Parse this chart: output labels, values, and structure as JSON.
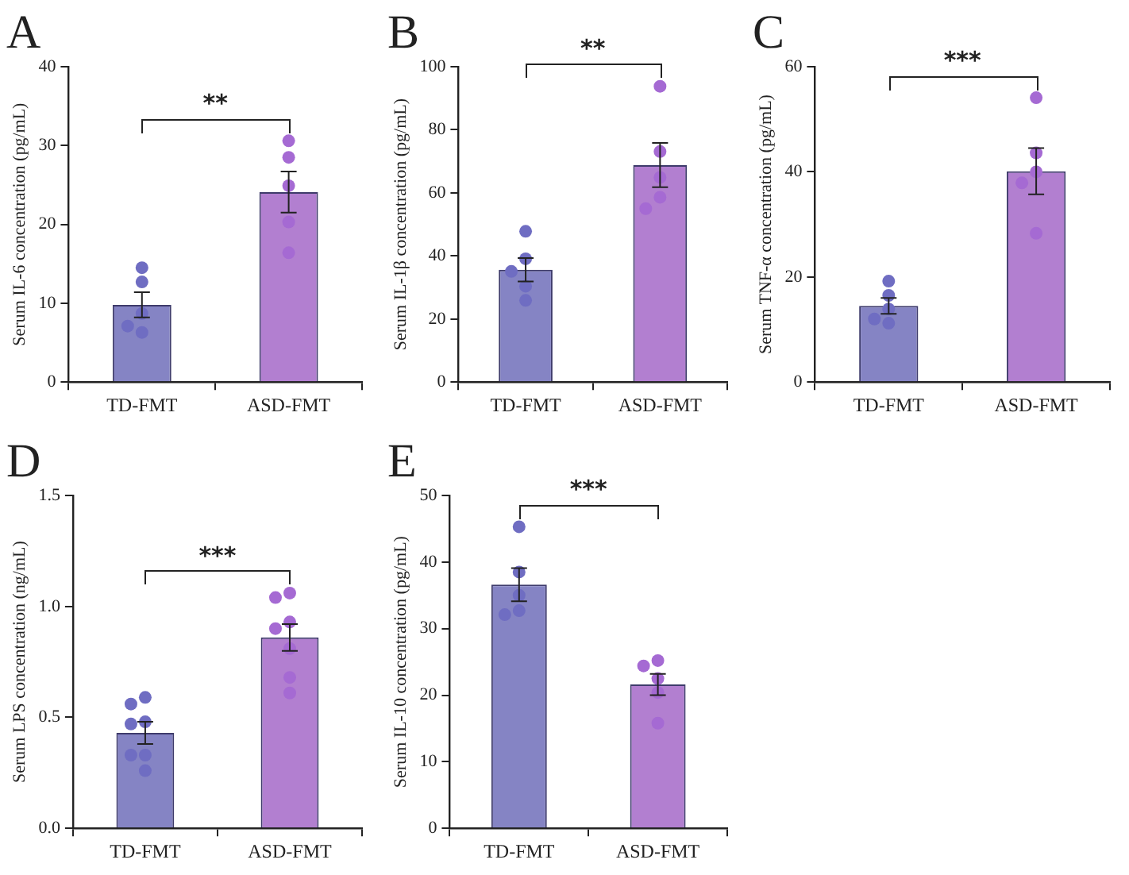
{
  "chart_data": [
    {
      "type": "bar",
      "title": "A",
      "ylabel": "Serum IL-6 concentration (pg/mL)",
      "categories": [
        "TD-FMT",
        "ASD-FMT"
      ],
      "ylim": [
        0,
        40
      ],
      "yticks": [
        0,
        10,
        20,
        30,
        40
      ],
      "grid": false,
      "legend": false,
      "marker": "circle",
      "annotations": [
        "**"
      ],
      "series": [
        {
          "colors": [
            "#8584c4",
            "#b27fd0"
          ],
          "values": [
            9.8,
            24.1
          ],
          "errors": [
            1.6,
            2.6
          ]
        },
        {
          "type": "scatter",
          "x": [
            "TD-FMT",
            "TD-FMT",
            "TD-FMT",
            "TD-FMT",
            "TD-FMT",
            "ASD-FMT",
            "ASD-FMT",
            "ASD-FMT",
            "ASD-FMT",
            "ASD-FMT"
          ],
          "values": [
            14.5,
            12.7,
            8.7,
            6.3,
            7.1,
            30.6,
            28.5,
            24.9,
            20.3,
            16.4
          ],
          "colors": [
            "#6f6dc2",
            "#6f6dc2",
            "#6f6dc2",
            "#6f6dc2",
            "#6f6dc2",
            "#a56ad3",
            "#a56ad3",
            "#a56ad3",
            "#a56ad3",
            "#a56ad3"
          ]
        }
      ]
    },
    {
      "type": "bar",
      "title": "B",
      "ylabel": "Serum IL-1β concentration (pg/mL)",
      "categories": [
        "TD-FMT",
        "ASD-FMT"
      ],
      "ylim": [
        0,
        100
      ],
      "yticks": [
        0,
        20,
        40,
        60,
        80,
        100
      ],
      "grid": false,
      "legend": false,
      "marker": "circle",
      "annotations": [
        "**"
      ],
      "series": [
        {
          "colors": [
            "#8584c4",
            "#b27fd0"
          ],
          "values": [
            35.6,
            68.8
          ],
          "errors": [
            3.7,
            7
          ]
        },
        {
          "type": "scatter",
          "x": [
            "TD-FMT",
            "TD-FMT",
            "TD-FMT",
            "TD-FMT",
            "TD-FMT",
            "ASD-FMT",
            "ASD-FMT",
            "ASD-FMT",
            "ASD-FMT",
            "ASD-FMT"
          ],
          "values": [
            47.8,
            39.1,
            35.1,
            30.4,
            25.9,
            93.8,
            73.1,
            64.9,
            58.6,
            55
          ],
          "colors": [
            "#6f6dc2",
            "#6f6dc2",
            "#6f6dc2",
            "#6f6dc2",
            "#6f6dc2",
            "#a56ad3",
            "#a56ad3",
            "#a56ad3",
            "#a56ad3",
            "#a56ad3"
          ]
        }
      ]
    },
    {
      "type": "bar",
      "title": "C",
      "ylabel": "Serum TNF-α concentration (pg/mL)",
      "categories": [
        "TD-FMT",
        "ASD-FMT"
      ],
      "ylim": [
        0,
        60
      ],
      "yticks": [
        0,
        20,
        40,
        60
      ],
      "grid": false,
      "legend": false,
      "marker": "circle",
      "annotations": [
        "***"
      ],
      "series": [
        {
          "colors": [
            "#8584c4",
            "#b27fd0"
          ],
          "values": [
            14.5,
            40.1
          ],
          "errors": [
            1.5,
            4.4
          ]
        },
        {
          "type": "scatter",
          "x": [
            "TD-FMT",
            "TD-FMT",
            "TD-FMT",
            "TD-FMT",
            "TD-FMT",
            "ASD-FMT",
            "ASD-FMT",
            "ASD-FMT",
            "ASD-FMT",
            "ASD-FMT"
          ],
          "values": [
            19.2,
            16.5,
            13.9,
            12,
            11.2,
            54.1,
            43.6,
            40,
            37.9,
            28.3
          ],
          "colors": [
            "#6f6dc2",
            "#6f6dc2",
            "#6f6dc2",
            "#6f6dc2",
            "#6f6dc2",
            "#a56ad3",
            "#a56ad3",
            "#a56ad3",
            "#a56ad3",
            "#a56ad3"
          ]
        }
      ]
    },
    {
      "type": "bar",
      "title": "D",
      "ylabel": "Serum LPS concentration (ng/mL)",
      "categories": [
        "TD-FMT",
        "ASD-FMT"
      ],
      "ylim": [
        0,
        1.5
      ],
      "yticks": [
        {
          "value": 0,
          "label": "0.0"
        },
        0.5,
        {
          "value": 1,
          "label": "1.0"
        },
        1.5
      ],
      "grid": false,
      "legend": false,
      "marker": "circle",
      "annotations": [
        "***"
      ],
      "series": [
        {
          "colors": [
            "#8584c4",
            "#b27fd0"
          ],
          "values": [
            0.43,
            0.86
          ],
          "errors": [
            0.05,
            0.06
          ]
        },
        {
          "type": "scatter",
          "x": [
            "TD-FMT",
            "TD-FMT",
            "TD-FMT",
            "TD-FMT",
            "TD-FMT",
            "TD-FMT",
            "TD-FMT",
            "ASD-FMT",
            "ASD-FMT",
            "ASD-FMT",
            "ASD-FMT",
            "ASD-FMT",
            "ASD-FMT",
            "ASD-FMT"
          ],
          "values": [
            0.59,
            0.56,
            0.48,
            0.47,
            0.33,
            0.33,
            0.26,
            1.06,
            1.04,
            0.93,
            0.9,
            0.81,
            0.68,
            0.61
          ],
          "colors": [
            "#6f6dc2",
            "#6f6dc2",
            "#6f6dc2",
            "#6f6dc2",
            "#6f6dc2",
            "#6f6dc2",
            "#6f6dc2",
            "#a56ad3",
            "#a56ad3",
            "#a56ad3",
            "#a56ad3",
            "#a56ad3",
            "#a56ad3",
            "#a56ad3"
          ]
        }
      ]
    },
    {
      "type": "bar",
      "title": "E",
      "ylabel": "Serum IL-10 concentration (pg/mL)",
      "categories": [
        "TD-FMT",
        "ASD-FMT"
      ],
      "ylim": [
        0,
        50
      ],
      "yticks": [
        0,
        10,
        20,
        30,
        40,
        50
      ],
      "grid": false,
      "legend": false,
      "marker": "circle",
      "annotations": [
        "***"
      ],
      "series": [
        {
          "colors": [
            "#8584c4",
            "#b27fd0"
          ],
          "values": [
            36.6,
            21.6
          ],
          "errors": [
            2.5,
            1.6
          ]
        },
        {
          "type": "scatter",
          "x": [
            "TD-FMT",
            "TD-FMT",
            "TD-FMT",
            "TD-FMT",
            "TD-FMT",
            "ASD-FMT",
            "ASD-FMT",
            "ASD-FMT",
            "ASD-FMT",
            "ASD-FMT"
          ],
          "values": [
            45.3,
            38.5,
            35,
            32.7,
            32.1,
            25.2,
            24.4,
            22.5,
            20.4,
            15.8
          ],
          "colors": [
            "#6f6dc2",
            "#6f6dc2",
            "#6f6dc2",
            "#6f6dc2",
            "#6f6dc2",
            "#a56ad3",
            "#a56ad3",
            "#a56ad3",
            "#a56ad3",
            "#a56ad3"
          ]
        }
      ]
    }
  ]
}
